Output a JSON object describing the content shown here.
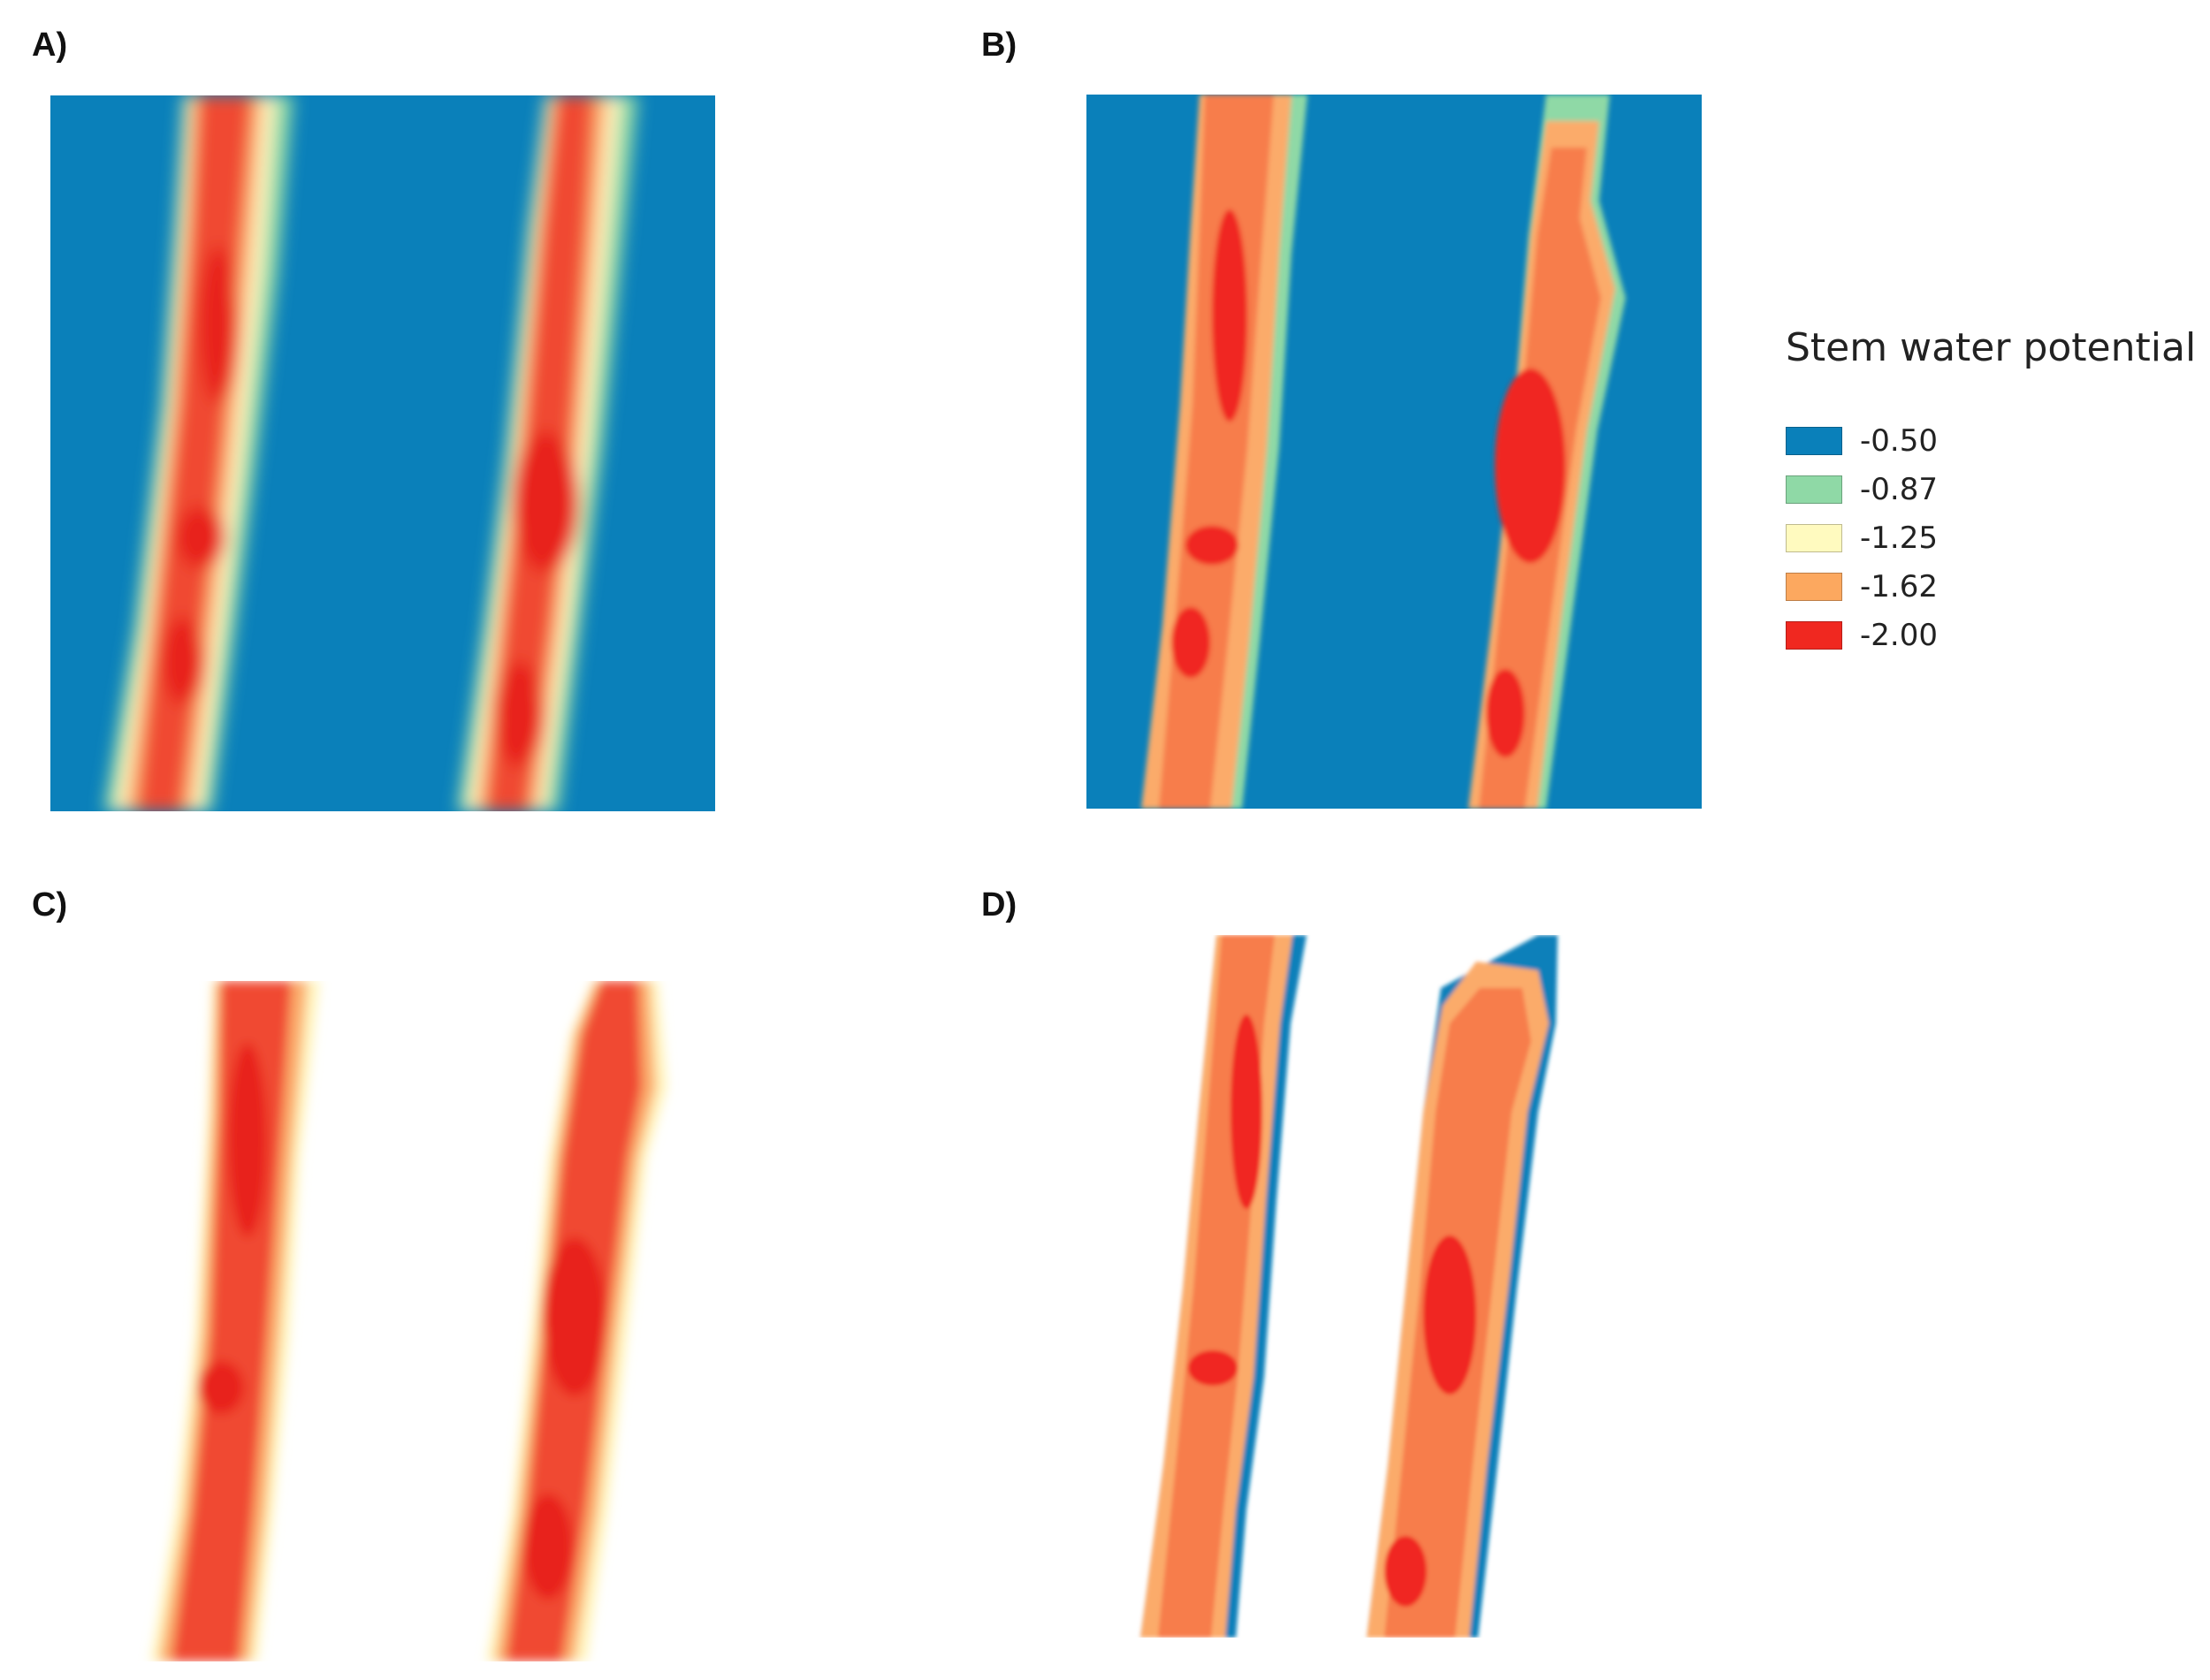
{
  "panels": [
    {
      "id": "a",
      "label": "A)"
    },
    {
      "id": "b",
      "label": "B)"
    },
    {
      "id": "c",
      "label": "C)"
    },
    {
      "id": "d",
      "label": "D)"
    }
  ],
  "legend": {
    "title": "Stem water potential",
    "items": [
      {
        "value": "-0.50",
        "color": "#0a80ba"
      },
      {
        "value": "-0.87",
        "color": "#8fd9a6"
      },
      {
        "value": "-1.25",
        "color": "#fffabf"
      },
      {
        "value": "-1.62",
        "color": "#fca85f"
      },
      {
        "value": "-2.00",
        "color": "#f02820"
      }
    ]
  },
  "colors": {
    "background_class": "#0a80ba",
    "dark_red": "#e8231c",
    "red": "#f04a30",
    "orange_red": "#f77d4b",
    "orange": "#fbab6a",
    "light_orange": "#fdc98a",
    "cream": "#fff5bf",
    "green": "#8fd9a6"
  }
}
